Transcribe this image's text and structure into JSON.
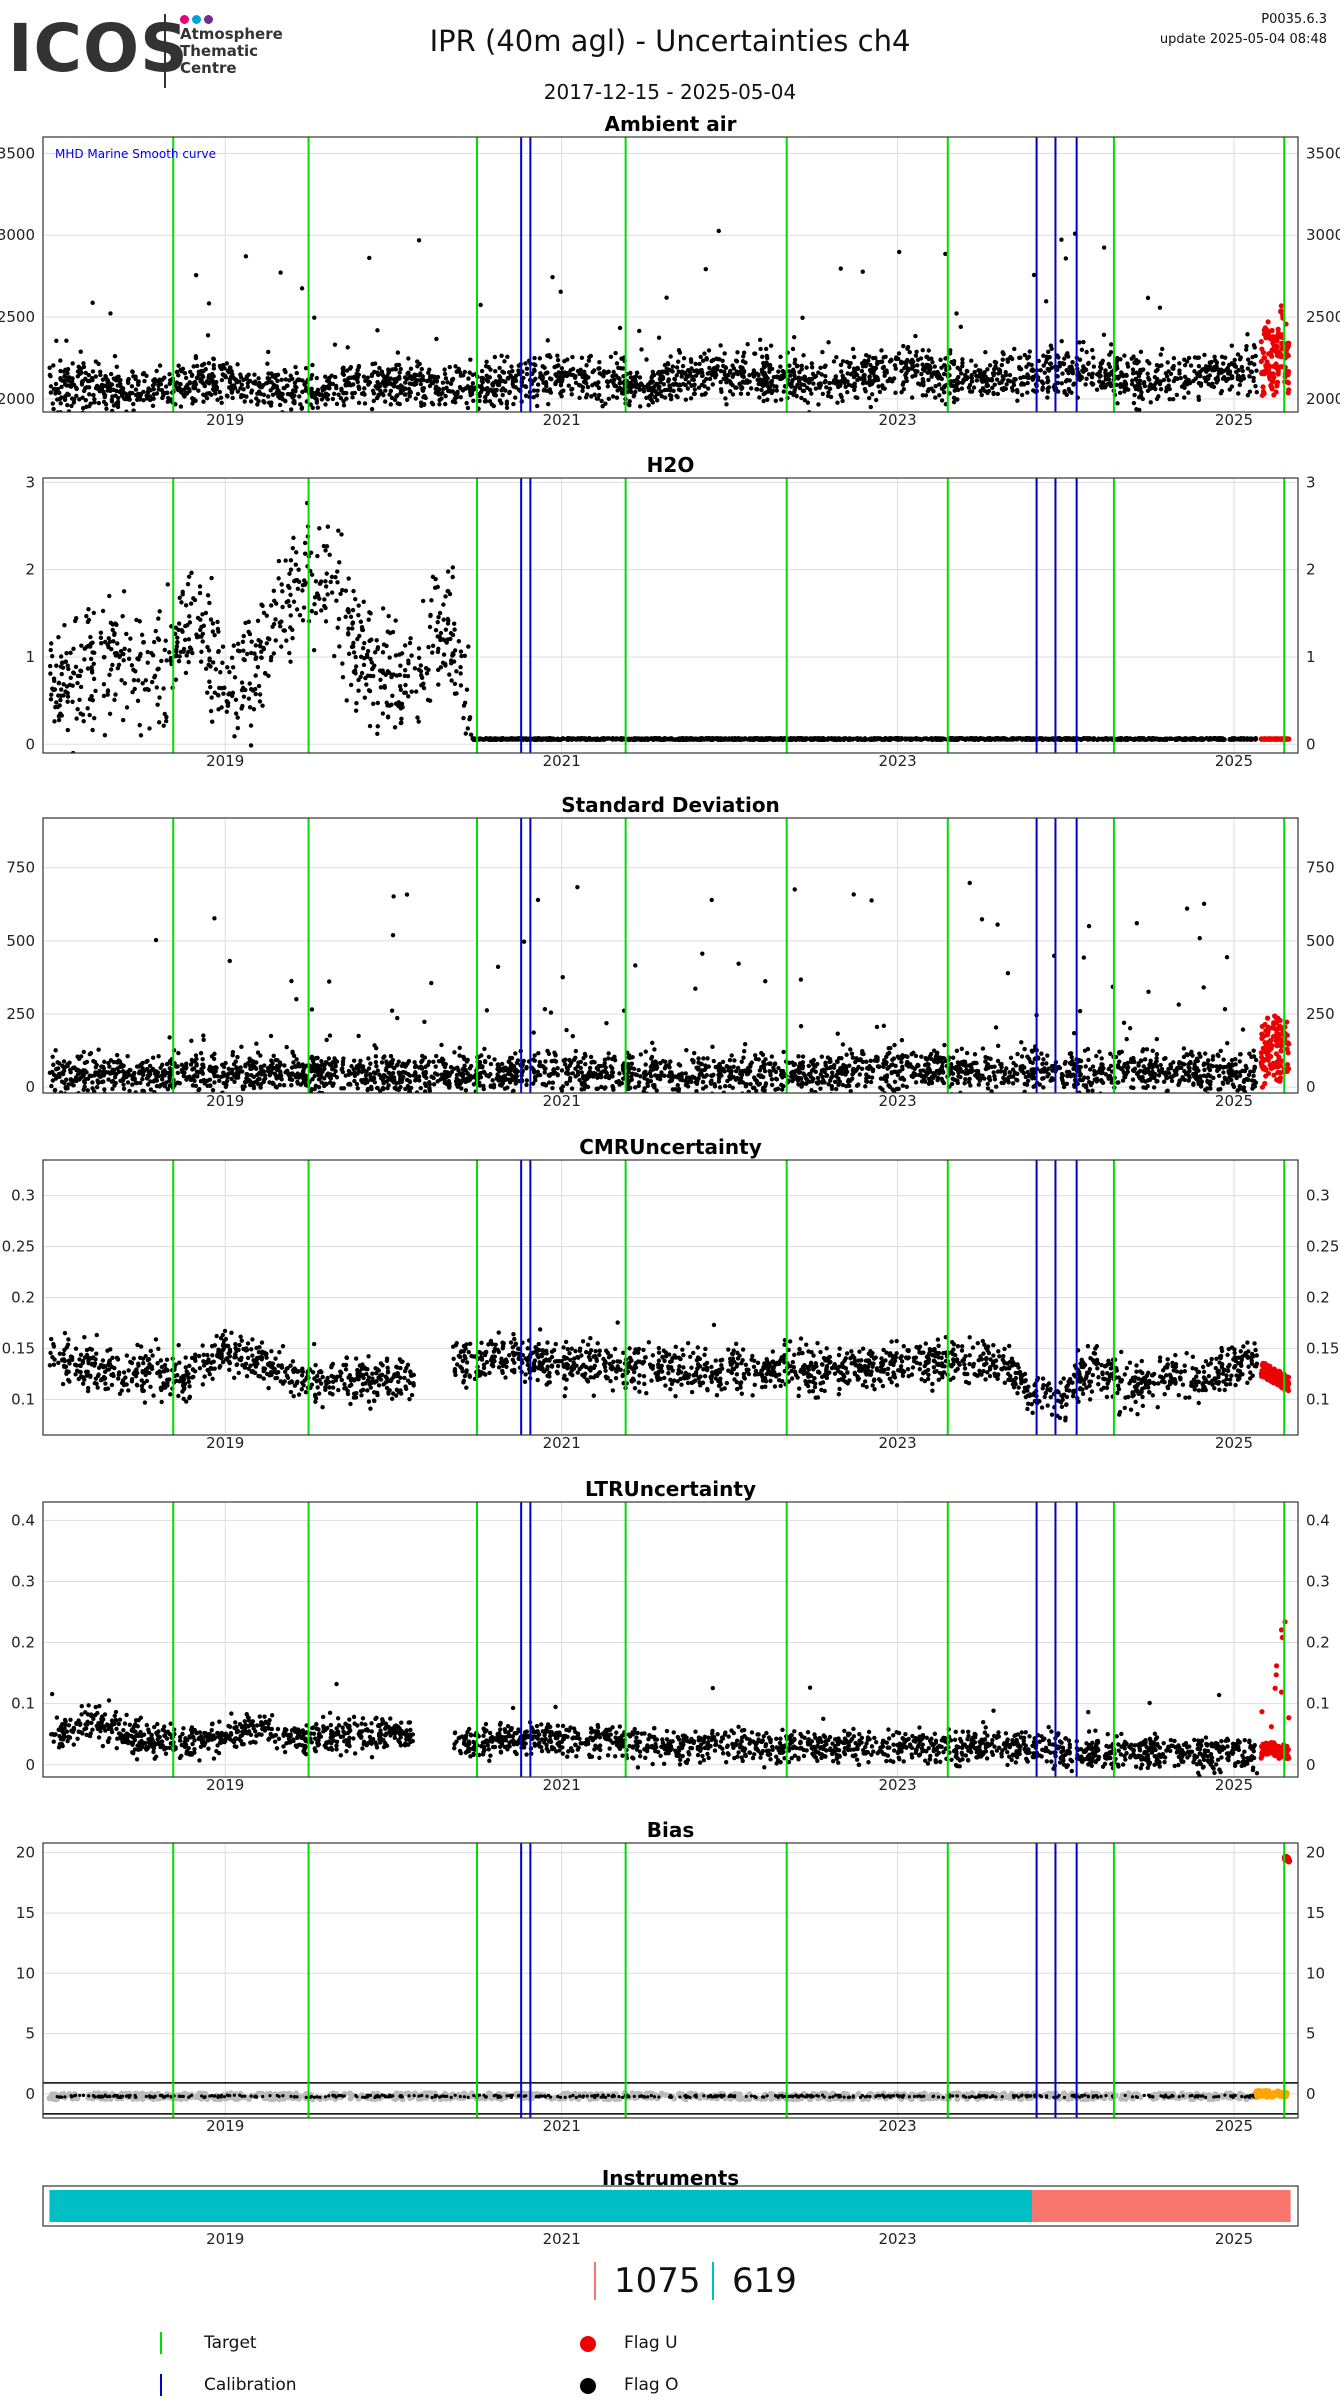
{
  "header": {
    "logo_text": "ICOS",
    "logo_sub": [
      "Atmosphere",
      "Thematic",
      "Centre"
    ],
    "logo_dot_colors": [
      "#e6007e",
      "#00a3d9",
      "#6f2c91"
    ],
    "title": "IPR  (40m agl) - Uncertainties ch4",
    "date_range": "2017-12-15 - 2025-05-04",
    "version": "P0035.6.3",
    "update": "update  2025-05-04 08:48"
  },
  "colors": {
    "target": "#00dd00",
    "calibration": "#0000cc",
    "flag_u": "#ee0000",
    "flag_o": "#000000",
    "instrument_a": "#00bfc4",
    "instrument_b": "#f8766d",
    "grid": "#dddddd",
    "bias_gray": "#bbbbbb",
    "bias_orange": "#ffa500"
  },
  "chart_data": {
    "type": "scatter",
    "x_range": [
      "2017-12-01",
      "2025-05-20"
    ],
    "x_ticks": [
      "2019",
      "2021",
      "2023",
      "2025"
    ],
    "target_lines": [
      "2018-09-10",
      "2019-07-01",
      "2020-07-01",
      "2021-05-20",
      "2022-05-05",
      "2023-04-20",
      "2024-04-15",
      "2025-04-20"
    ],
    "calibration_lines": [
      "2020-10-05",
      "2020-10-25",
      "2023-10-30",
      "2023-12-10",
      "2024-01-25"
    ],
    "panels": [
      {
        "title": "Ambient air",
        "ylim": [
          1920,
          3600
        ],
        "yticks": [
          2000,
          2500,
          3000,
          3500
        ],
        "annotation": "MHD Marine Smooth curve",
        "series": [
          {
            "flag": "O",
            "x": [
              "2018-01-01",
              "2018-03-01",
              "2018-06-01",
              "2018-09-01",
              "2018-12-01",
              "2019-03-01",
              "2019-06-01",
              "2019-09-01",
              "2019-12-01",
              "2020-03-01",
              "2020-06-01",
              "2020-09-01",
              "2020-12-01",
              "2021-03-01",
              "2021-06-01",
              "2021-09-01",
              "2021-12-01",
              "2022-03-01",
              "2022-06-01",
              "2022-09-01",
              "2022-12-01",
              "2023-03-01",
              "2023-06-01",
              "2023-09-01",
              "2023-12-01",
              "2024-03-01",
              "2024-06-01",
              "2024-09-01",
              "2024-12-01",
              "2025-02-15"
            ],
            "y": [
              2060,
              2080,
              2040,
              2070,
              2110,
              2090,
              2050,
              2070,
              2100,
              2090,
              2060,
              2090,
              2130,
              2120,
              2080,
              2110,
              2150,
              2140,
              2100,
              2120,
              2160,
              2150,
              2110,
              2140,
              2170,
              2160,
              2130,
              2140,
              2170,
              2180
            ]
          },
          {
            "flag": "U",
            "x": [
              "2025-03-01",
              "2025-03-15",
              "2025-04-01",
              "2025-04-15",
              "2025-04-30"
            ],
            "y": [
              2150,
              2300,
              2200,
              2400,
              2170
            ]
          }
        ]
      },
      {
        "title": "H2O",
        "ylim": [
          -0.1,
          3.05
        ],
        "yticks": [
          0,
          1,
          2,
          3
        ],
        "annotation": "",
        "series": [
          {
            "flag": "O",
            "x": [
              "2018-01-01",
              "2018-03-01",
              "2018-05-01",
              "2018-07-01",
              "2018-09-01",
              "2018-11-01",
              "2019-01-01",
              "2019-03-01",
              "2019-05-01",
              "2019-07-01",
              "2019-09-01",
              "2019-11-01",
              "2020-01-01",
              "2020-03-01",
              "2020-05-01",
              "2020-07-01",
              "2021-01-01",
              "2022-01-01",
              "2023-01-01",
              "2024-01-01",
              "2025-01-01",
              "2025-02-20"
            ],
            "y": [
              0.7,
              0.9,
              0.95,
              0.95,
              0.95,
              1.5,
              0.6,
              0.8,
              1.5,
              1.9,
              1.8,
              1.0,
              0.7,
              0.9,
              1.4,
              0.06,
              0.06,
              0.06,
              0.06,
              0.06,
              0.06,
              0.06
            ]
          },
          {
            "flag": "U",
            "x": [
              "2025-03-01",
              "2025-04-01",
              "2025-04-30"
            ],
            "y": [
              0.06,
              0.06,
              0.06
            ]
          }
        ]
      },
      {
        "title": "Standard Deviation",
        "ylim": [
          -20,
          920
        ],
        "yticks": [
          0,
          250,
          500,
          750
        ],
        "annotation": "",
        "series": [
          {
            "flag": "O",
            "x": [
              "2018-01-01",
              "2018-06-01",
              "2018-12-01",
              "2019-06-01",
              "2019-12-01",
              "2020-06-01",
              "2020-12-01",
              "2021-06-01",
              "2021-12-01",
              "2022-06-01",
              "2022-12-01",
              "2023-06-01",
              "2023-12-01",
              "2024-06-01",
              "2024-12-01",
              "2025-02-15"
            ],
            "y": [
              40,
              45,
              50,
              45,
              40,
              45,
              50,
              45,
              40,
              45,
              50,
              55,
              50,
              55,
              50,
              45
            ]
          },
          {
            "flag": "U",
            "x": [
              "2025-03-01",
              "2025-03-20",
              "2025-04-10",
              "2025-04-30"
            ],
            "y": [
              60,
              100,
              80,
              70
            ]
          }
        ]
      },
      {
        "title": "CMRUncertainty",
        "ylim": [
          0.065,
          0.335
        ],
        "yticks": [
          0.1,
          0.15,
          0.2,
          0.25,
          0.3
        ],
        "annotation": "",
        "series": [
          {
            "flag": "O",
            "x": [
              "2018-01-01",
              "2018-04-01",
              "2018-07-01",
              "2018-10-01",
              "2019-01-01",
              "2019-04-01",
              "2019-07-01",
              "2019-10-01",
              "2020-01-01",
              "2020-05-01",
              "2020-08-01",
              "2020-11-01",
              "2021-02-01",
              "2021-05-01",
              "2021-08-01",
              "2021-11-01",
              "2022-02-01",
              "2022-05-01",
              "2022-08-01",
              "2022-11-01",
              "2023-02-01",
              "2023-05-01",
              "2023-08-01",
              "2023-11-01",
              "2024-01-01",
              "2024-03-01",
              "2024-05-01",
              "2024-08-01",
              "2024-11-01",
              "2025-02-01"
            ],
            "y": [
              0.14,
              0.13,
              0.125,
              0.12,
              0.15,
              0.135,
              0.12,
              0.12,
              0.12,
              0.135,
              0.14,
              0.135,
              0.135,
              0.13,
              0.13,
              0.13,
              0.13,
              0.13,
              0.13,
              0.13,
              0.135,
              0.135,
              0.135,
              0.105,
              0.105,
              0.135,
              0.11,
              0.12,
              0.12,
              0.14
            ]
          },
          {
            "flag": "U",
            "x": [
              "2025-03-01",
              "2025-03-20",
              "2025-04-10",
              "2025-04-30"
            ],
            "y": [
              0.13,
              0.125,
              0.12,
              0.115
            ]
          }
        ]
      },
      {
        "title": "LTRUncertainty",
        "ylim": [
          -0.02,
          0.43
        ],
        "yticks": [
          0,
          0.1,
          0.2,
          0.3,
          0.4
        ],
        "annotation": "",
        "series": [
          {
            "flag": "O",
            "x": [
              "2018-01-01",
              "2018-04-01",
              "2018-07-01",
              "2018-10-01",
              "2019-01-01",
              "2019-04-01",
              "2019-07-01",
              "2019-10-01",
              "2020-01-01",
              "2020-05-01",
              "2020-08-01",
              "2020-11-01",
              "2021-02-01",
              "2021-05-01",
              "2021-08-01",
              "2021-11-01",
              "2022-02-01",
              "2022-05-01",
              "2022-08-01",
              "2022-11-01",
              "2023-02-01",
              "2023-05-01",
              "2023-08-01",
              "2023-11-01",
              "2024-02-01",
              "2024-05-01",
              "2024-08-01",
              "2024-11-01",
              "2025-02-01"
            ],
            "y": [
              0.05,
              0.07,
              0.04,
              0.03,
              0.05,
              0.06,
              0.04,
              0.05,
              0.05,
              0.03,
              0.04,
              0.04,
              0.04,
              0.04,
              0.03,
              0.03,
              0.03,
              0.03,
              0.03,
              0.03,
              0.03,
              0.03,
              0.03,
              0.03,
              0.02,
              0.02,
              0.02,
              0.02,
              0.02
            ]
          },
          {
            "flag": "U",
            "x": [
              "2025-03-01",
              "2025-03-20",
              "2025-04-10",
              "2025-04-30"
            ],
            "y": [
              0.02,
              0.03,
              0.02,
              0.02
            ]
          }
        ]
      },
      {
        "title": "Bias",
        "ylim": [
          -2,
          20.8
        ],
        "yticks": [
          0,
          5,
          10,
          15,
          20
        ],
        "annotation": "",
        "series": [
          {
            "flag": "O",
            "x": [
              "2018-01-01",
              "2019-01-01",
              "2020-01-01",
              "2021-01-01",
              "2022-01-01",
              "2023-01-01",
              "2024-01-01",
              "2024-06-01",
              "2025-01-01"
            ],
            "y": [
              -0.2,
              -0.2,
              -0.2,
              -0.2,
              -0.2,
              -0.2,
              -0.2,
              -0.2,
              -0.2
            ]
          },
          {
            "flag": "U",
            "x": [
              "2025-04-20",
              "2025-04-30"
            ],
            "y": [
              19.6,
              19.4
            ]
          }
        ]
      }
    ],
    "instruments": {
      "title": "Instruments",
      "segments": [
        {
          "start": "2017-12-15",
          "end": "2023-10-20",
          "color": "#00bfc4",
          "count": 619
        },
        {
          "start": "2023-10-20",
          "end": "2025-05-04",
          "color": "#f8766d",
          "count": 1075
        }
      ]
    }
  },
  "counts": [
    {
      "value": "1075",
      "color": "#f8766d"
    },
    {
      "value": "619",
      "color": "#00bfc4"
    }
  ],
  "legend": {
    "items": [
      {
        "label": "Target",
        "type": "line",
        "color": "#00dd00"
      },
      {
        "label": "Calibration",
        "type": "line",
        "color": "#0000cc"
      },
      {
        "label": "Flag U",
        "type": "dot",
        "color": "#ee0000"
      },
      {
        "label": "Flag O",
        "type": "dot",
        "color": "#000000"
      }
    ]
  }
}
